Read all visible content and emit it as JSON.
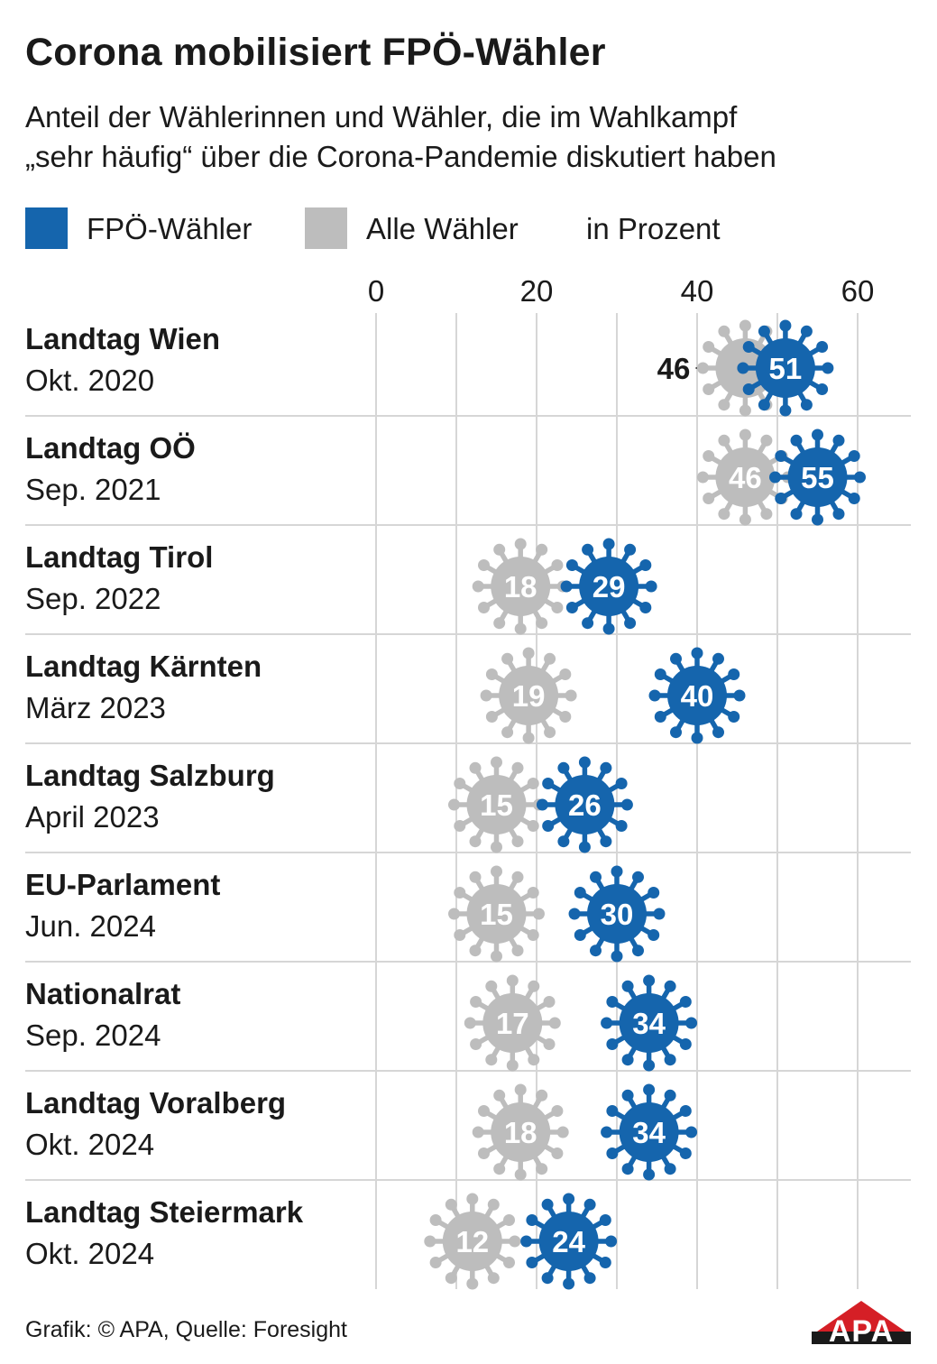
{
  "header": {
    "title": "Corona mobilisiert FPÖ-Wähler",
    "subtitle_line1": "Anteil der Wählerinnen und Wähler, die im Wahlkampf",
    "subtitle_line2": "„sehr häufig“ über die Corona-Pandemie diskutiert haben"
  },
  "legend": {
    "fpoe_label": "FPÖ-Wähler",
    "all_label": "Alle Wähler",
    "unit_label": "in Prozent"
  },
  "colors": {
    "fpoe": "#1565ad",
    "all": "#bdbdbd",
    "grid": "#d6d6d6",
    "text": "#1a1a1a"
  },
  "footer": {
    "credit": "Grafik: © APA, Quelle: Foresight",
    "logo_text": "APA"
  },
  "chart_data": {
    "type": "dot",
    "xlim": [
      0,
      60
    ],
    "xticks": [
      0,
      20,
      40,
      60
    ],
    "grid": true,
    "categories": [
      {
        "name": "Landtag Wien",
        "date": "Okt. 2020"
      },
      {
        "name": "Landtag OÖ",
        "date": "Sep. 2021"
      },
      {
        "name": "Landtag Tirol",
        "date": "Sep. 2022"
      },
      {
        "name": "Landtag Kärnten",
        "date": "März 2023"
      },
      {
        "name": "Landtag Salzburg",
        "date": "April 2023"
      },
      {
        "name": "EU-Parlament",
        "date": "Jun. 2024"
      },
      {
        "name": "Nationalrat",
        "date": "Sep. 2024"
      },
      {
        "name": "Landtag Voralberg",
        "date": "Okt. 2024"
      },
      {
        "name": "Landtag Steiermark",
        "date": "Okt. 2024"
      }
    ],
    "series": [
      {
        "name": "Alle Wähler",
        "values": [
          46,
          46,
          18,
          19,
          15,
          15,
          17,
          18,
          12
        ]
      },
      {
        "name": "FPÖ-Wähler",
        "values": [
          51,
          55,
          29,
          40,
          26,
          30,
          34,
          34,
          24
        ]
      }
    ],
    "annotation": {
      "text": "46",
      "row": 0,
      "series": "Alle Wähler"
    }
  }
}
